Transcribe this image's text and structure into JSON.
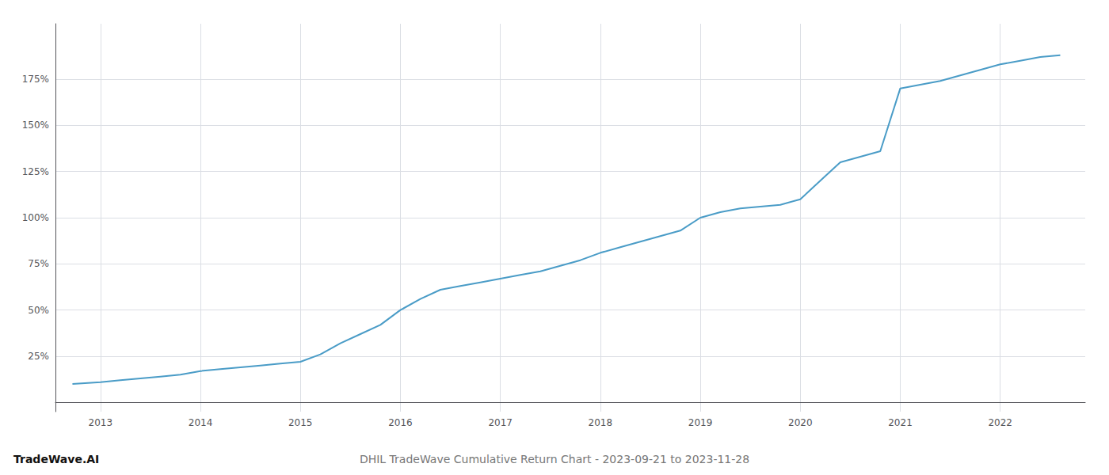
{
  "chart_data": {
    "type": "line",
    "title": "DHIL TradeWave Cumulative Return Chart - 2023-09-21 to 2023-11-28",
    "annotations": [
      "TradeWave.AI"
    ],
    "color": "#4a9cc7",
    "grid": true,
    "x": [
      2012.72,
      2013.0,
      2013.2,
      2013.4,
      2013.6,
      2013.8,
      2014.0,
      2014.2,
      2014.4,
      2014.6,
      2014.8,
      2015.0,
      2015.2,
      2015.4,
      2015.6,
      2015.8,
      2016.0,
      2016.2,
      2016.4,
      2016.6,
      2016.8,
      2017.0,
      2017.2,
      2017.4,
      2017.6,
      2017.8,
      2018.0,
      2018.2,
      2018.4,
      2018.6,
      2018.8,
      2019.0,
      2019.2,
      2019.4,
      2019.6,
      2019.8,
      2020.0,
      2020.2,
      2020.4,
      2020.6,
      2020.8,
      2021.0,
      2021.2,
      2021.4,
      2021.6,
      2021.8,
      2022.0,
      2022.2,
      2022.4,
      2022.6
    ],
    "values": [
      10,
      11,
      12,
      13,
      14,
      15,
      17,
      18,
      19,
      20,
      21,
      22,
      26,
      32,
      37,
      42,
      50,
      56,
      61,
      63,
      65,
      67,
      69,
      71,
      74,
      77,
      81,
      84,
      87,
      90,
      93,
      100,
      103,
      105,
      106,
      107,
      110,
      120,
      130,
      133,
      136,
      170,
      172,
      174,
      177,
      180,
      183,
      185,
      187,
      188
    ],
    "xlim": [
      2012.55,
      2022.85
    ],
    "xticks": [
      2013,
      2014,
      2015,
      2016,
      2017,
      2018,
      2019,
      2020,
      2021,
      2022
    ],
    "ylim": [
      -5,
      205
    ],
    "yticks": [
      {
        "value": 25,
        "label": "25%"
      },
      {
        "value": 50,
        "label": "50%"
      },
      {
        "value": 75,
        "label": "75%"
      },
      {
        "value": 100,
        "label": "100%"
      },
      {
        "value": 125,
        "label": "125%"
      },
      {
        "value": 150,
        "label": "150%"
      },
      {
        "value": 175,
        "label": "175%"
      }
    ]
  }
}
